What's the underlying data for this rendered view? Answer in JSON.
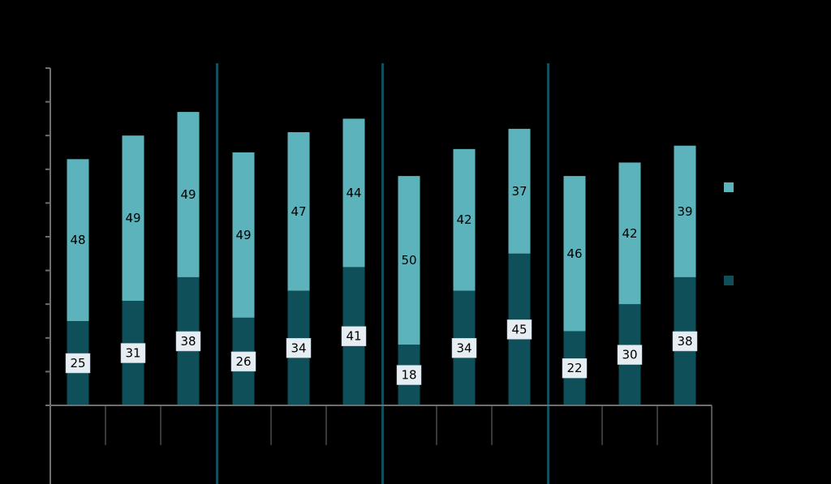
{
  "chart_data": {
    "type": "bar",
    "stacked": true,
    "title": "",
    "xlabel": "",
    "ylabel": "",
    "ylim": [
      0,
      100
    ],
    "groups": 4,
    "bars_per_group": 3,
    "categories": [
      "",
      "",
      "",
      "",
      "",
      "",
      "",
      "",
      "",
      "",
      "",
      ""
    ],
    "series": [
      {
        "color": "#0e4f59",
        "values": [
          25,
          31,
          38,
          26,
          34,
          41,
          18,
          34,
          45,
          22,
          30,
          38
        ]
      },
      {
        "color": "#5cb3bb",
        "values": [
          48,
          49,
          49,
          49,
          47,
          44,
          50,
          42,
          37,
          46,
          42,
          39
        ]
      }
    ],
    "legend_position": "right",
    "grid": false,
    "label_box_color": "#e6eef4",
    "axis_color": "#6f6f6f",
    "separator_color": "#0e4f59"
  }
}
